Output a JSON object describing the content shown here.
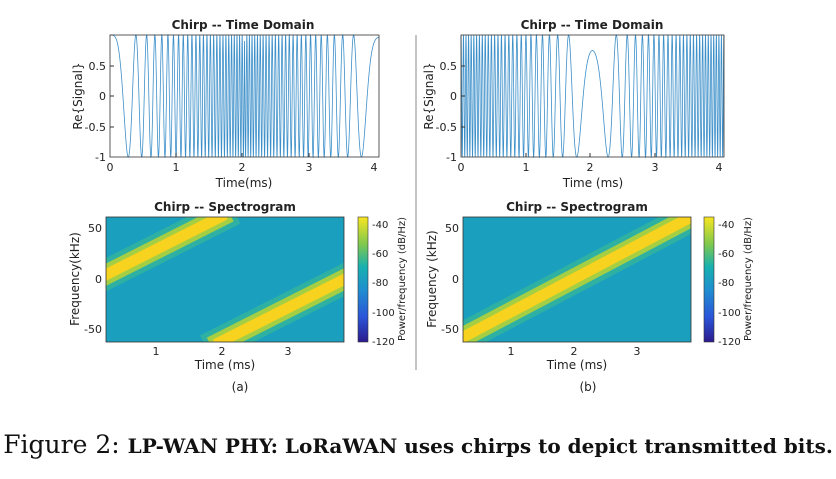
{
  "figure": {
    "caption_label": "Figure 2:",
    "caption_text": "LP-WAN PHY: LoRaWAN uses chirps to depict transmitted bits.",
    "panels": [
      {
        "sublabel": "(a)",
        "time_title": "Chirp -- Time Domain",
        "time_xlabel": "Time(ms)",
        "time_ylabel": "Re{Signal}",
        "spec_title": "Chirp -- Spectrogram",
        "spec_xlabel": "Time (ms)",
        "spec_ylabel": "Frequency(kHz)"
      },
      {
        "sublabel": "(b)",
        "time_title": "Chirp -- Time Domain",
        "time_xlabel": "Time (ms)",
        "time_ylabel": "Re{Signal}",
        "spec_title": "Chirp -- Spectrogram",
        "spec_xlabel": "Time (ms)",
        "spec_ylabel": "Frequency (kHz)"
      }
    ],
    "colorbar_label": "Power/frequency (dB/Hz)",
    "colors": {
      "signal": "#3c8fc9",
      "field": "#1a9fbf",
      "band": "#f7d21e",
      "glow": "#3fbf8a",
      "colorbar_top": "#f8e620",
      "colorbar_bottom": "#2b1a8c"
    }
  },
  "chart_data": [
    {
      "id": "a-time",
      "type": "line",
      "title": "Chirp -- Time Domain",
      "xlabel": "Time(ms)",
      "ylabel": "Re{Signal}",
      "xlim": [
        0,
        4.1
      ],
      "ylim": [
        -1,
        1
      ],
      "xticks": [
        "0",
        "1",
        "2",
        "3",
        "4"
      ],
      "yticks": [
        "-1",
        "-0.5",
        "0",
        "0.5"
      ],
      "series": [
        {
          "name": "Re{Signal}",
          "signal": "shifted up-chirp",
          "f_start_khz": 0,
          "f_end_khz": 62.5,
          "wrap_to_khz": -62.5,
          "duration_ms": 4.1
        }
      ]
    },
    {
      "id": "b-time",
      "type": "line",
      "title": "Chirp -- Time Domain",
      "xlabel": "Time (ms)",
      "ylabel": "Re{Signal}",
      "xlim": [
        0,
        4.1
      ],
      "ylim": [
        -1,
        1
      ],
      "xticks": [
        "0",
        "1",
        "2",
        "3",
        "4"
      ],
      "yticks": [
        "-1",
        "-0.5",
        "0",
        "0.5"
      ],
      "series": [
        {
          "name": "Re{Signal}",
          "signal": "base up-chirp",
          "f_start_khz": -62.5,
          "f_end_khz": 62.5,
          "duration_ms": 4.1
        }
      ]
    },
    {
      "id": "a-spec",
      "type": "heatmap",
      "title": "Chirp -- Spectrogram",
      "xlabel": "Time (ms)",
      "ylabel": "Frequency(kHz)",
      "xlim": [
        0.15,
        3.9
      ],
      "ylim": [
        -62.5,
        62.5
      ],
      "xticks": [
        "1",
        "2",
        "3"
      ],
      "yticks": [
        "-50",
        "0",
        "50"
      ],
      "colorbar": {
        "label": "Power/frequency (dB/Hz)",
        "range": [
          -120,
          -40
        ],
        "ticks": [
          "-40",
          "-60",
          "-80",
          "-100",
          "-120"
        ]
      },
      "bands": [
        {
          "t_start_ms": 0,
          "f_start_khz": 0,
          "t_end_ms": 1.95,
          "f_end_khz": 62.5
        },
        {
          "t_start_ms": 1.95,
          "f_start_khz": -62.5,
          "t_end_ms": 3.9,
          "f_end_khz": 0
        }
      ]
    },
    {
      "id": "b-spec",
      "type": "heatmap",
      "title": "Chirp -- Spectrogram",
      "xlabel": "Time (ms)",
      "ylabel": "Frequency (kHz)",
      "xlim": [
        0.15,
        3.9
      ],
      "ylim": [
        -62.5,
        62.5
      ],
      "xticks": [
        "1",
        "2",
        "3"
      ],
      "yticks": [
        "-50",
        "0",
        "50"
      ],
      "colorbar": {
        "label": "Power/frequency (dB/Hz)",
        "range": [
          -120,
          -40
        ],
        "ticks": [
          "-40",
          "-60",
          "-80",
          "-100",
          "-120"
        ]
      },
      "bands": [
        {
          "t_start_ms": 0,
          "f_start_khz": -62.5,
          "t_end_ms": 3.9,
          "f_end_khz": 62.5
        }
      ]
    }
  ]
}
